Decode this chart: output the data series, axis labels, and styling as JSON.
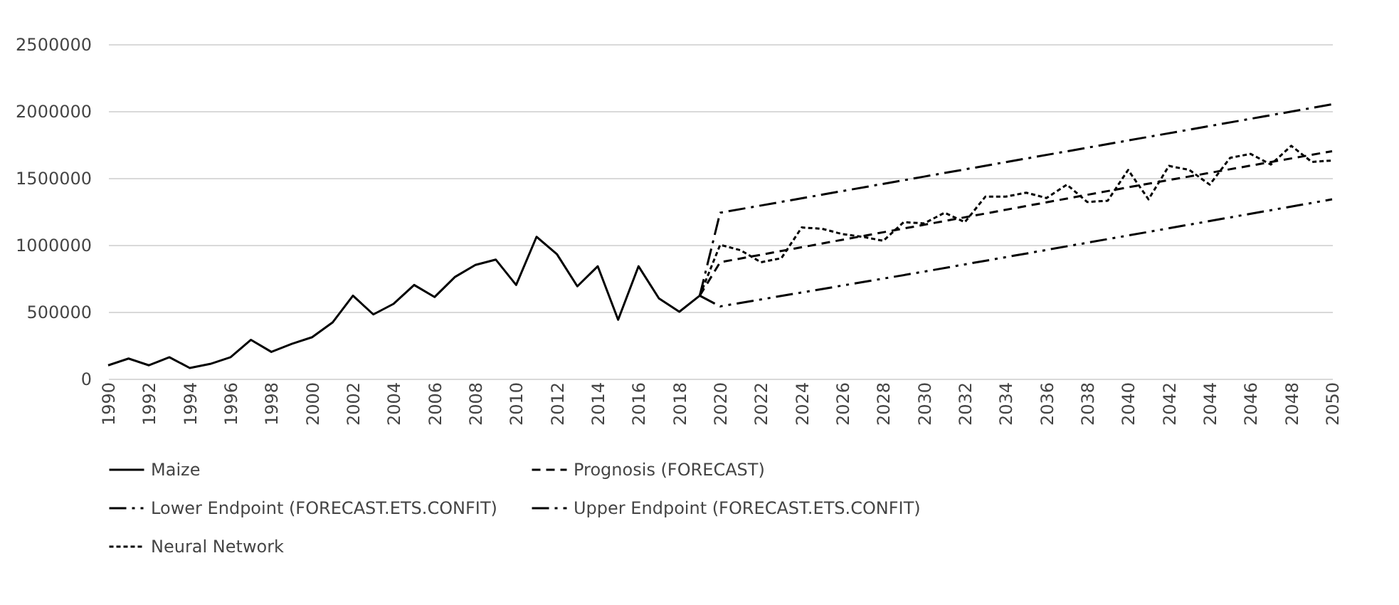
{
  "chart_data": {
    "type": "line",
    "xlim": [
      1990,
      2050
    ],
    "xticks": [
      1990,
      1992,
      1994,
      1996,
      1998,
      2000,
      2002,
      2004,
      2006,
      2008,
      2010,
      2012,
      2014,
      2016,
      2018,
      2020,
      2022,
      2024,
      2026,
      2028,
      2030,
      2032,
      2034,
      2036,
      2038,
      2040,
      2042,
      2044,
      2046,
      2048,
      2050
    ],
    "ylim": [
      0,
      2500000
    ],
    "yticks": [
      0,
      500000,
      1000000,
      1500000,
      2000000,
      2500000
    ],
    "grid": "y",
    "legend": "bottom",
    "marker": "none",
    "series": [
      {
        "name": "Maize",
        "color": "#000000",
        "line_style": "solid",
        "x": [
          1990,
          1991,
          1992,
          1993,
          1994,
          1995,
          1996,
          1997,
          1998,
          1999,
          2000,
          2001,
          2002,
          2003,
          2004,
          2005,
          2006,
          2007,
          2008,
          2009,
          2010,
          2011,
          2012,
          2013,
          2014,
          2015,
          2016,
          2017,
          2018,
          2019
        ],
        "values": [
          100000,
          150000,
          100000,
          160000,
          80000,
          110000,
          160000,
          290000,
          200000,
          260000,
          310000,
          420000,
          620000,
          480000,
          560000,
          700000,
          610000,
          760000,
          850000,
          890000,
          700000,
          1060000,
          930000,
          690000,
          840000,
          440000,
          840000,
          600000,
          500000,
          620000
        ]
      },
      {
        "name": "Prognosis (FORECAST)",
        "color": "#000000",
        "line_style": "dashed",
        "x": [
          2019,
          2020,
          2030,
          2040,
          2050
        ],
        "values": [
          620000,
          870000,
          1150000,
          1430000,
          1700000
        ]
      },
      {
        "name": "Lower Endpoint (FORECAST.ETS.CONFIT)",
        "color": "#000000",
        "line_style": "dashed",
        "x": [
          2019,
          2020,
          2030,
          2040,
          2050
        ],
        "values": [
          620000,
          540000,
          800000,
          1070000,
          1340000
        ]
      },
      {
        "name": "Upper Endpoint (FORECAST.ETS.CONFIT)",
        "color": "#000000",
        "line_style": "dashed",
        "x": [
          2019,
          2020,
          2030,
          2040,
          2050
        ],
        "values": [
          620000,
          1240000,
          1510000,
          1780000,
          2050000
        ]
      },
      {
        "name": "Neural Network",
        "color": "#000000",
        "line_style": "dotted",
        "x": [
          2019,
          2020,
          2021,
          2022,
          2023,
          2024,
          2025,
          2026,
          2027,
          2028,
          2029,
          2030,
          2031,
          2032,
          2033,
          2034,
          2035,
          2036,
          2037,
          2038,
          2039,
          2040,
          2041,
          2042,
          2043,
          2044,
          2045,
          2046,
          2047,
          2048,
          2049,
          2050
        ],
        "values": [
          620000,
          1000000,
          960000,
          870000,
          900000,
          1130000,
          1120000,
          1080000,
          1060000,
          1030000,
          1170000,
          1160000,
          1240000,
          1170000,
          1360000,
          1360000,
          1390000,
          1350000,
          1450000,
          1320000,
          1330000,
          1560000,
          1340000,
          1590000,
          1560000,
          1450000,
          1650000,
          1680000,
          1600000,
          1740000,
          1620000,
          1630000
        ]
      }
    ]
  }
}
